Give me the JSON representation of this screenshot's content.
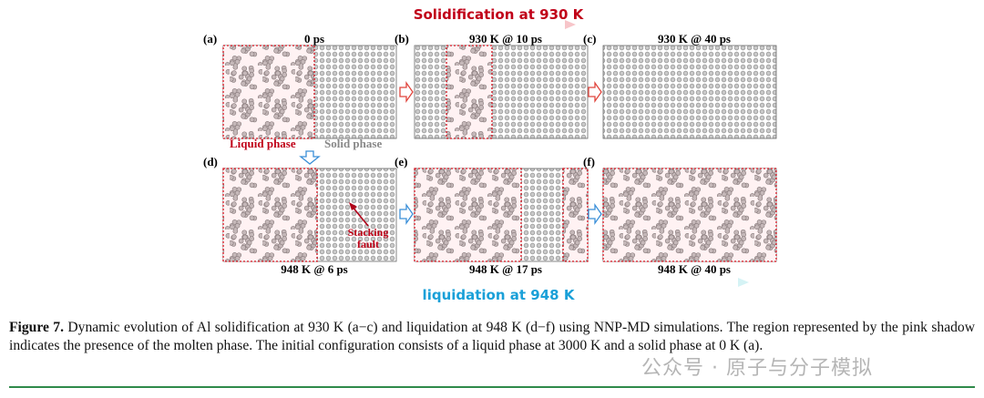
{
  "figure": {
    "top_arrow_label": "Solidification at 930 K",
    "panels": [
      {
        "label": "(a)",
        "title": "0 ps"
      },
      {
        "label": "(b)",
        "title": "930 K @ 10 ps"
      },
      {
        "label": "(c)",
        "title": "930 K @ 40 ps"
      },
      {
        "label": "(d)",
        "title": "948 K @ 6 ps"
      },
      {
        "label": "(e)",
        "title": "948 K @ 17 ps"
      },
      {
        "label": "(f)",
        "title": "948 K @ 40 ps"
      }
    ],
    "annotations": {
      "liquid_phase": "Liquid phase",
      "solid_phase": "Solid phase",
      "stacking_fault": [
        "Stacking",
        "fault"
      ]
    },
    "bottom_arrow_label": "liquidation at 948 K",
    "caption": {
      "label": "Figure 7.",
      "text": "Dynamic evolution of Al solidification at 930 K (a−c) and liquidation at 948 K (d−f) using NNP-MD simulations. The region represented by the pink shadow indicates the presence of the molten phase. The initial configuration consists of a liquid phase at 3000 K and a solid phase at 0 K (a)."
    }
  },
  "watermark": "公众号 · 原子与分子模拟"
}
